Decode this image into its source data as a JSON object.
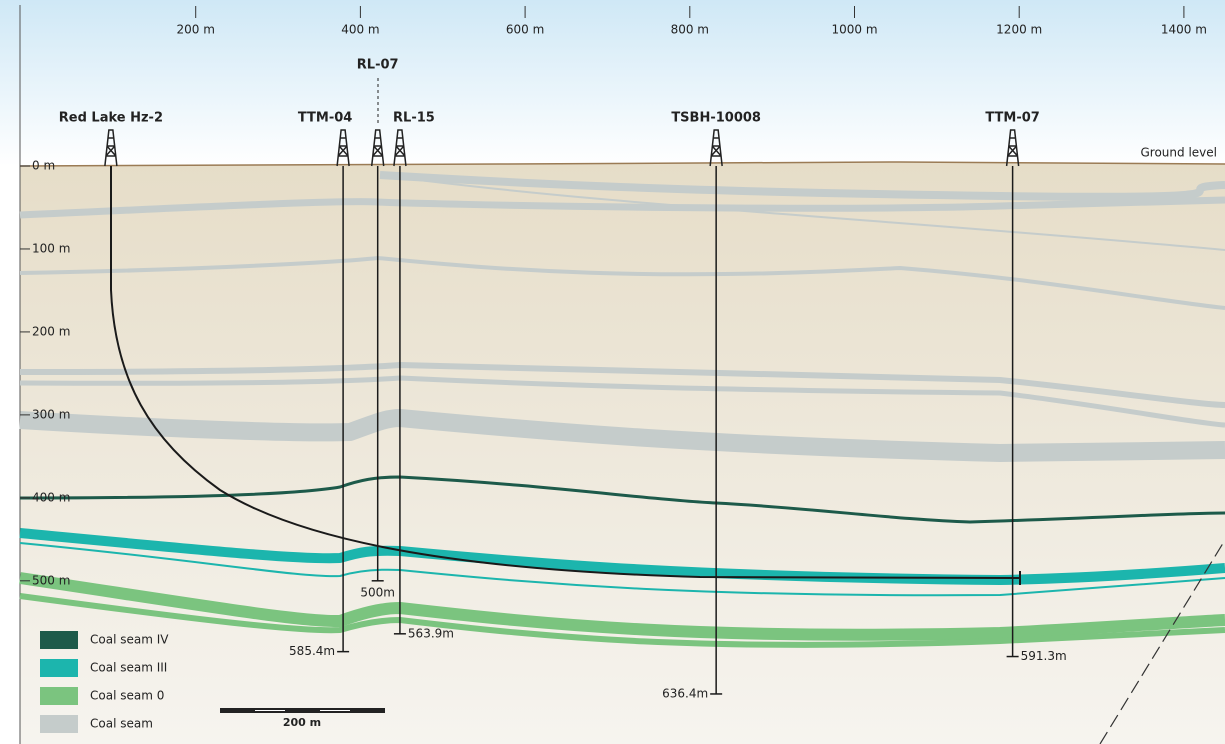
{
  "chart_data": {
    "type": "cross-section",
    "xticks": [
      {
        "value": 200,
        "label": "200 m"
      },
      {
        "value": 400,
        "label": "400 m"
      },
      {
        "value": 600,
        "label": "600 m"
      },
      {
        "value": 800,
        "label": "800 m"
      },
      {
        "value": 1000,
        "label": "1000 m"
      },
      {
        "value": 1200,
        "label": "1200 m"
      },
      {
        "value": 1400,
        "label": "1400 m"
      }
    ],
    "yticks": [
      {
        "value": 0,
        "label": "0 m"
      },
      {
        "value": 100,
        "label": "100 m"
      },
      {
        "value": 200,
        "label": "200 m"
      },
      {
        "value": 300,
        "label": "300 m"
      },
      {
        "value": 400,
        "label": "400 m"
      },
      {
        "value": 500,
        "label": "500 m"
      }
    ],
    "ground_label": "Ground level",
    "wells": [
      {
        "name": "Red Lake Hz-2",
        "x": 97
      },
      {
        "name": "TTM-04",
        "x": 379,
        "depth": 585.4,
        "depth_label": "585.4m"
      },
      {
        "name": "RL-07",
        "x": 421,
        "depth": 500,
        "depth_label": "500m"
      },
      {
        "name": "RL-15",
        "x": 448,
        "depth": 563.9,
        "depth_label": "563.9m"
      },
      {
        "name": "TSBH-10008",
        "x": 832,
        "depth": 636.4,
        "depth_label": "636.4m"
      },
      {
        "name": "TTM-07",
        "x": 1192,
        "depth": 591.3,
        "depth_label": "591.3m"
      }
    ],
    "legend": [
      {
        "name": "Coal seam IV",
        "color": "#1d5a4a"
      },
      {
        "name": "Coal seam III",
        "color": "#1cb5ad"
      },
      {
        "name": "Coal seam 0",
        "color": "#7bc47f"
      },
      {
        "name": "Coal seam",
        "color": "#c5cccb"
      }
    ],
    "scale_bar": "200 m"
  }
}
